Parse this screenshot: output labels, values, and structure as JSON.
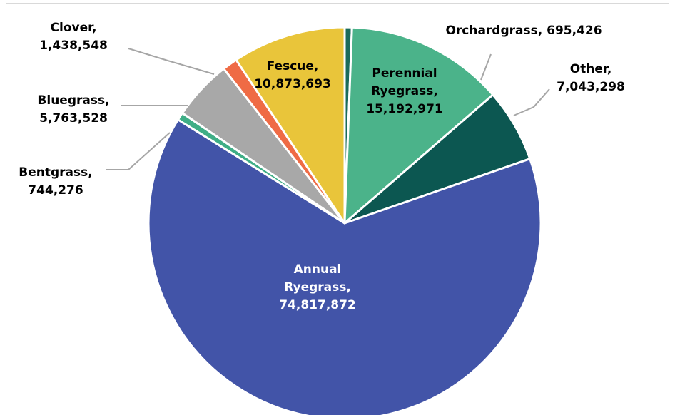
{
  "chart_data": {
    "type": "pie",
    "title": "",
    "start_angle_deg": 90,
    "direction": "clockwise",
    "slice_border_color": "#ffffff",
    "series": [
      {
        "name": "Orchardgrass",
        "value": 695426,
        "color": "#1b6b5a",
        "label_lines": [
          "Orchardgrass, 695,426"
        ],
        "label_position": "outside",
        "label_color": "#000000"
      },
      {
        "name": "Perennial Ryegrass",
        "value": 15192971,
        "color": "#4bb38a",
        "label_lines": [
          "Perennial",
          "Ryegrass,",
          "15,192,971"
        ],
        "label_position": "inside",
        "label_color": "#000000"
      },
      {
        "name": "Other",
        "value": 7043298,
        "color": "#0c5751",
        "label_lines": [
          "Other,",
          "7,043,298"
        ],
        "label_position": "outside",
        "label_color": "#000000"
      },
      {
        "name": "Annual Ryegrass",
        "value": 74817872,
        "color": "#4254a8",
        "label_lines": [
          "Annual",
          "Ryegrass,",
          "74,817,872"
        ],
        "label_position": "inside",
        "label_color": "#ffffff"
      },
      {
        "name": "Bentgrass",
        "value": 744276,
        "color": "#3fae86",
        "label_lines": [
          "Bentgrass,",
          "744,276"
        ],
        "label_position": "outside",
        "label_color": "#000000"
      },
      {
        "name": "Bluegrass",
        "value": 5763528,
        "color": "#a8a8a8",
        "label_lines": [
          "Bluegrass,",
          "5,763,528"
        ],
        "label_position": "outside",
        "label_color": "#000000"
      },
      {
        "name": "Clover",
        "value": 1438548,
        "color": "#ef6b45",
        "label_lines": [
          "Clover,",
          "1,438,548"
        ],
        "label_position": "outside",
        "label_color": "#000000"
      },
      {
        "name": "Fescue",
        "value": 10873693,
        "color": "#e9c53a",
        "label_lines": [
          "Fescue,",
          "10,873,693"
        ],
        "label_position": "inside",
        "label_color": "#000000"
      }
    ],
    "leader_line_color": "#a6a6a6"
  }
}
